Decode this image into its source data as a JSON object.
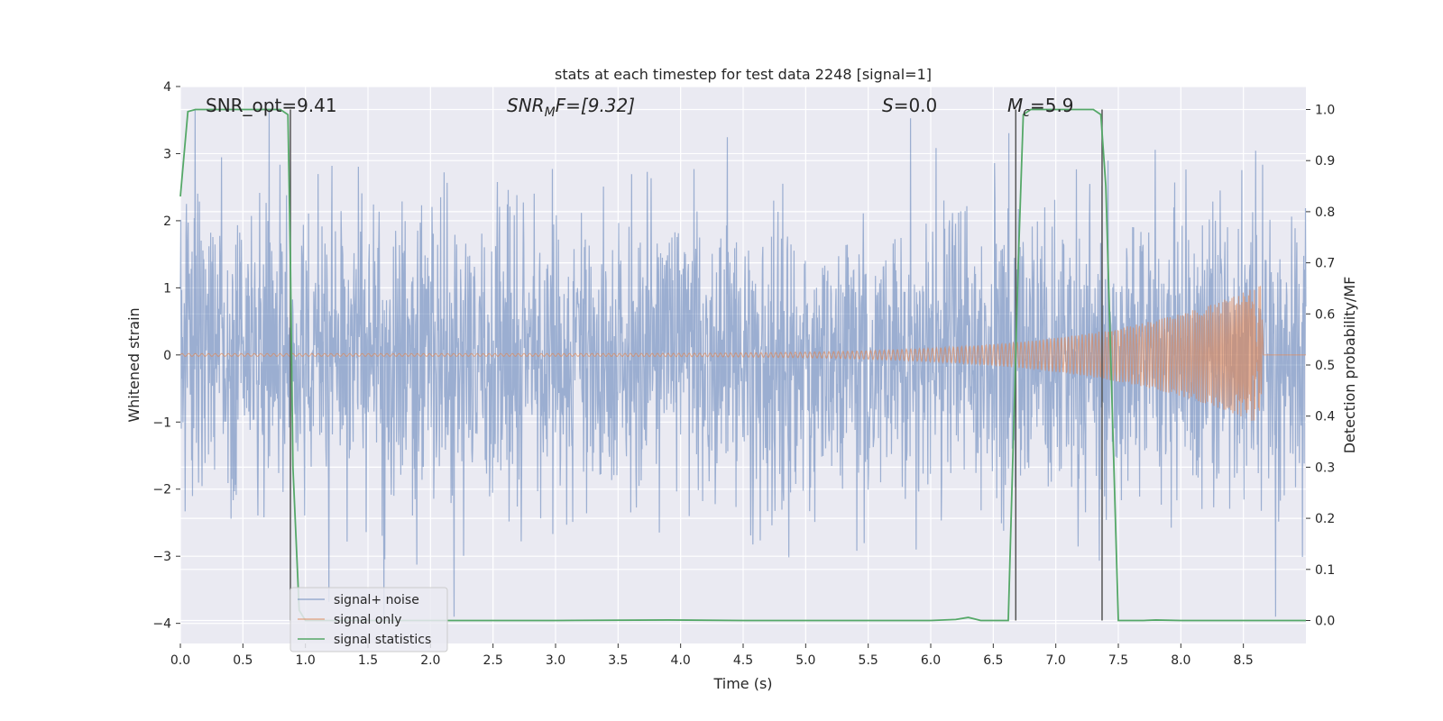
{
  "chart_data": {
    "type": "line",
    "title": "stats at each timestep for test data 2248 [signal=1]",
    "xlabel": "Time (s)",
    "ylabel": "Whitened strain",
    "ylabel_right": "Detection probability/MF",
    "xlim": [
      0,
      9
    ],
    "ylim": [
      -4.3,
      4.0
    ],
    "ylim_right": [
      -0.045,
      1.045
    ],
    "x_ticks": [
      0.0,
      0.5,
      1.0,
      1.5,
      2.0,
      2.5,
      3.0,
      3.5,
      4.0,
      4.5,
      5.0,
      5.5,
      6.0,
      6.5,
      7.0,
      7.5,
      8.0,
      8.5
    ],
    "y_ticks": [
      -4,
      -3,
      -2,
      -1,
      0,
      1,
      2,
      3,
      4
    ],
    "y_ticks_right": [
      0.0,
      0.1,
      0.2,
      0.3,
      0.4,
      0.5,
      0.6,
      0.7,
      0.8,
      0.9,
      1.0
    ],
    "grid": true,
    "legend_position": "bottom-left",
    "annotations": {
      "snr_opt": "SNR_opt=9.41",
      "snr_mf_main": "SNR",
      "snr_mf_sub": "M",
      "snr_mf_rest": "F=[9.32]",
      "s_italic": "S",
      "s_rest": "=0.0",
      "mc_main": "M",
      "mc_sub": "c",
      "mc_rest": "=5.9"
    },
    "noise": {
      "name": "signal+ noise",
      "color": "#4c72b0",
      "t_start": 0.0,
      "t_end": 9.0,
      "amplitude_std": 1.1,
      "peak_max": 3.65,
      "peak_min": -3.9
    },
    "signal": {
      "name": "signal only",
      "color": "#dd8452",
      "t_start": 0.0,
      "t_merger": 8.65,
      "t_end": 9.0,
      "amp_start": 0.02,
      "amp_peak": 1.05
    },
    "stats": {
      "name": "signal statistics",
      "color": "#55a868",
      "x": [
        0.0,
        0.06,
        0.12,
        0.25,
        0.5,
        0.7,
        0.8,
        0.86,
        0.88,
        0.9,
        0.95,
        1.0,
        2.0,
        3.0,
        3.9,
        4.5,
        5.0,
        6.0,
        6.2,
        6.3,
        6.35,
        6.4,
        6.6,
        6.62,
        6.7,
        6.74,
        6.8,
        7.0,
        7.2,
        7.3,
        7.36,
        7.4,
        7.5,
        7.7,
        7.8,
        8.0,
        9.0
      ],
      "y": [
        0.83,
        0.996,
        1.0,
        1.0,
        1.0,
        1.0,
        1.0,
        0.99,
        0.7,
        0.3,
        0.02,
        0.0,
        0.0,
        0.0,
        0.001,
        0.0,
        0.0,
        0.0,
        0.002,
        0.006,
        0.003,
        0.0,
        0.0,
        0.0,
        0.7,
        0.99,
        1.0,
        1.0,
        1.0,
        1.0,
        0.99,
        0.85,
        0.0,
        0.0,
        0.001,
        0.0,
        0.0
      ]
    },
    "vlines": {
      "color": "#555555",
      "x": [
        0.88,
        6.68,
        7.37
      ],
      "y_range": [
        0.0,
        1.0
      ]
    }
  }
}
